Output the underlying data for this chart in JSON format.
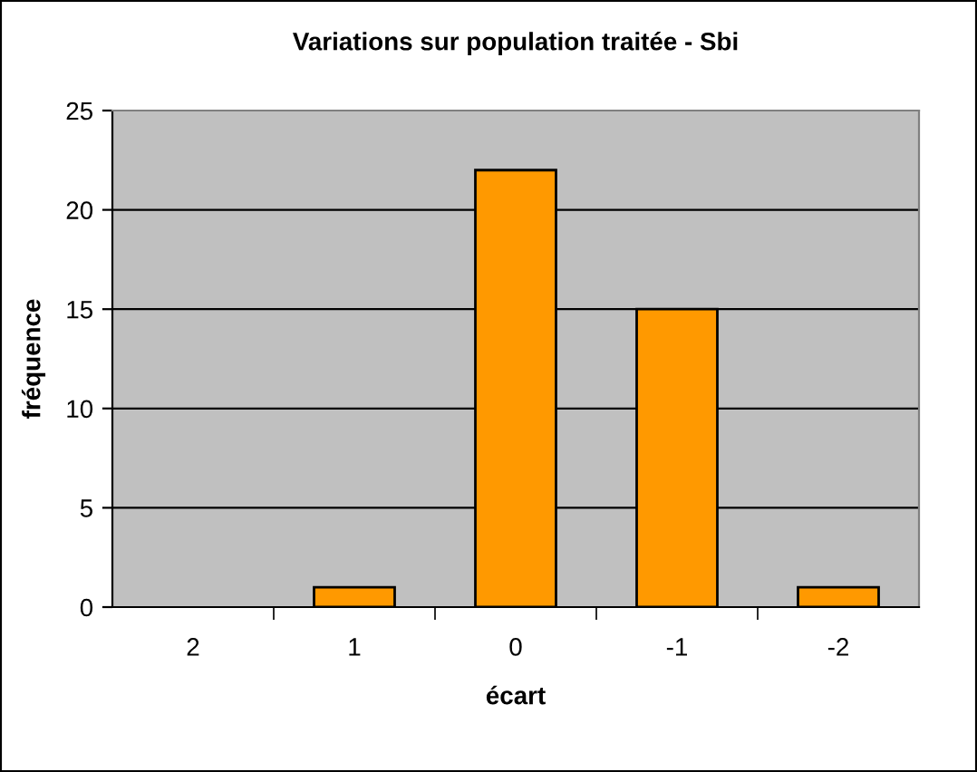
{
  "chart_data": {
    "type": "bar",
    "title": "Variations sur population traitée - Sbi",
    "xlabel": "écart",
    "ylabel": "fréquence",
    "categories": [
      "2",
      "1",
      "0",
      "-1",
      "-2"
    ],
    "values": [
      0,
      1,
      22,
      15,
      1
    ],
    "color": "#ff9900",
    "ylim": [
      0,
      25
    ],
    "yticks": [
      0,
      5,
      10,
      15,
      20,
      25
    ],
    "grid": "y",
    "legend": false
  }
}
